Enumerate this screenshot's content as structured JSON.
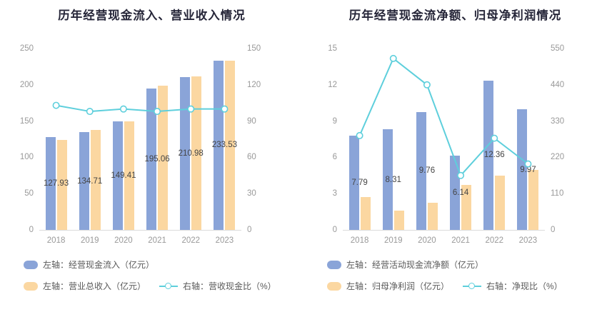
{
  "colors": {
    "background": "#ffffff",
    "title": "#252538",
    "axis_text": "#999999",
    "axis_line": "#dcdcdc",
    "bar_label": "#444444",
    "legend_text": "#595959",
    "bar_blue": "#8aa4d8",
    "bar_yellow": "#fbd7a1",
    "line_cyan": "#5ecfdc"
  },
  "chart_data": [
    {
      "type": "bar",
      "title": "历年经营现金流入、营业收入情况",
      "categories": [
        "2018",
        "2019",
        "2020",
        "2021",
        "2022",
        "2023"
      ],
      "grid": false,
      "legend_position": "bottom-left",
      "left_axis": {
        "min": 0,
        "max": 250,
        "ticks": [
          0,
          50,
          100,
          150,
          200,
          250
        ]
      },
      "right_axis": {
        "min": 0,
        "max": 150,
        "ticks": [
          0,
          30,
          60,
          90,
          120,
          150
        ]
      },
      "series": [
        {
          "name": "左轴：经营现金流入（亿元）",
          "type": "bar",
          "axis": "left",
          "color": "#8aa4d8",
          "values": [
            127.93,
            134.71,
            149.41,
            195.06,
            210.98,
            233.53
          ],
          "labels": [
            "127.93",
            "134.71",
            "149.41",
            "195.06",
            "210.98",
            "233.53"
          ]
        },
        {
          "name": "左轴：营业总收入（亿元）",
          "type": "bar",
          "axis": "left",
          "color": "#fbd7a1",
          "values": [
            124.2,
            137.5,
            149.8,
            199.0,
            211.3,
            233.4
          ]
        },
        {
          "name": "右轴：营收现金比（%）",
          "type": "line",
          "axis": "right",
          "color": "#5ecfdc",
          "values": [
            103,
            98,
            100,
            98,
            100,
            100
          ]
        }
      ]
    },
    {
      "type": "bar",
      "title": "历年经营现金流净额、归母净利润情况",
      "categories": [
        "2018",
        "2019",
        "2020",
        "2021",
        "2022",
        "2023"
      ],
      "grid": false,
      "legend_position": "bottom-left",
      "left_axis": {
        "min": 0,
        "max": 15,
        "ticks": [
          0,
          3,
          6,
          9,
          12,
          15
        ]
      },
      "right_axis": {
        "min": 0,
        "max": 550,
        "ticks": [
          0,
          110,
          220,
          330,
          440,
          550
        ]
      },
      "series": [
        {
          "name": "左轴：经营活动现金流净额（亿元）",
          "type": "bar",
          "axis": "left",
          "color": "#8aa4d8",
          "values": [
            7.79,
            8.31,
            9.76,
            6.14,
            12.36,
            9.97
          ],
          "labels": [
            "7.79",
            "8.31",
            "9.76",
            "6.14",
            "12.36",
            "9.97"
          ]
        },
        {
          "name": "左轴：归母净利润（亿元）",
          "type": "bar",
          "axis": "left",
          "color": "#fbd7a1",
          "values": [
            2.72,
            1.6,
            2.25,
            3.72,
            4.49,
            4.98
          ]
        },
        {
          "name": "右轴：净现比（%）",
          "type": "line",
          "axis": "right",
          "color": "#5ecfdc",
          "values": [
            286,
            520,
            440,
            165,
            278,
            200
          ]
        }
      ]
    }
  ]
}
